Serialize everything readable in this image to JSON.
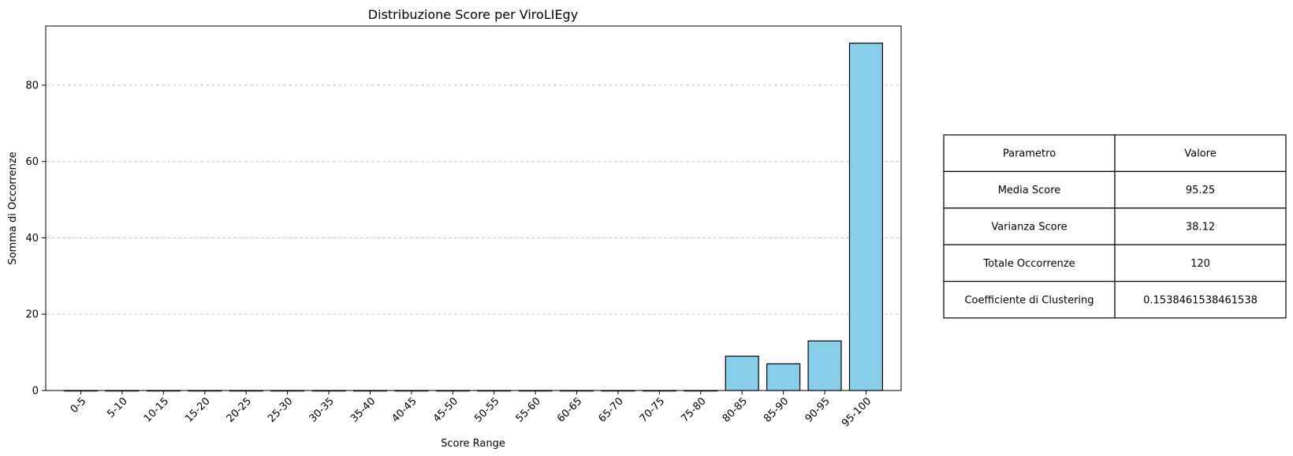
{
  "chart_data": {
    "type": "bar",
    "title": "Distribuzione Score per ViroLIEgy",
    "xlabel": "Score Range",
    "ylabel": "Somma di Occorrenze",
    "categories": [
      "0-5",
      "5-10",
      "10-15",
      "15-20",
      "20-25",
      "25-30",
      "30-35",
      "35-40",
      "40-45",
      "45-50",
      "50-55",
      "55-60",
      "60-65",
      "65-70",
      "70-75",
      "75-80",
      "80-85",
      "85-90",
      "90-95",
      "95-100"
    ],
    "values": [
      0,
      0,
      0,
      0,
      0,
      0,
      0,
      0,
      0,
      0,
      0,
      0,
      0,
      0,
      0,
      0,
      9,
      7,
      13,
      91
    ],
    "ylim": [
      0,
      95.5
    ],
    "yticks": [
      0,
      20,
      40,
      60,
      80
    ],
    "grid": "y-dashed",
    "colors": {
      "bar": "#87ceeb",
      "edge": "#000000",
      "grid": "#c8c8c8"
    }
  },
  "table": {
    "header": [
      "Parametro",
      "Valore"
    ],
    "rows": [
      [
        "Media Score",
        "95.25"
      ],
      [
        "Varianza Score",
        "38.12"
      ],
      [
        "Totale Occorrenze",
        "120"
      ],
      [
        "Coefficiente di Clustering",
        "0.1538461538461538"
      ]
    ]
  }
}
